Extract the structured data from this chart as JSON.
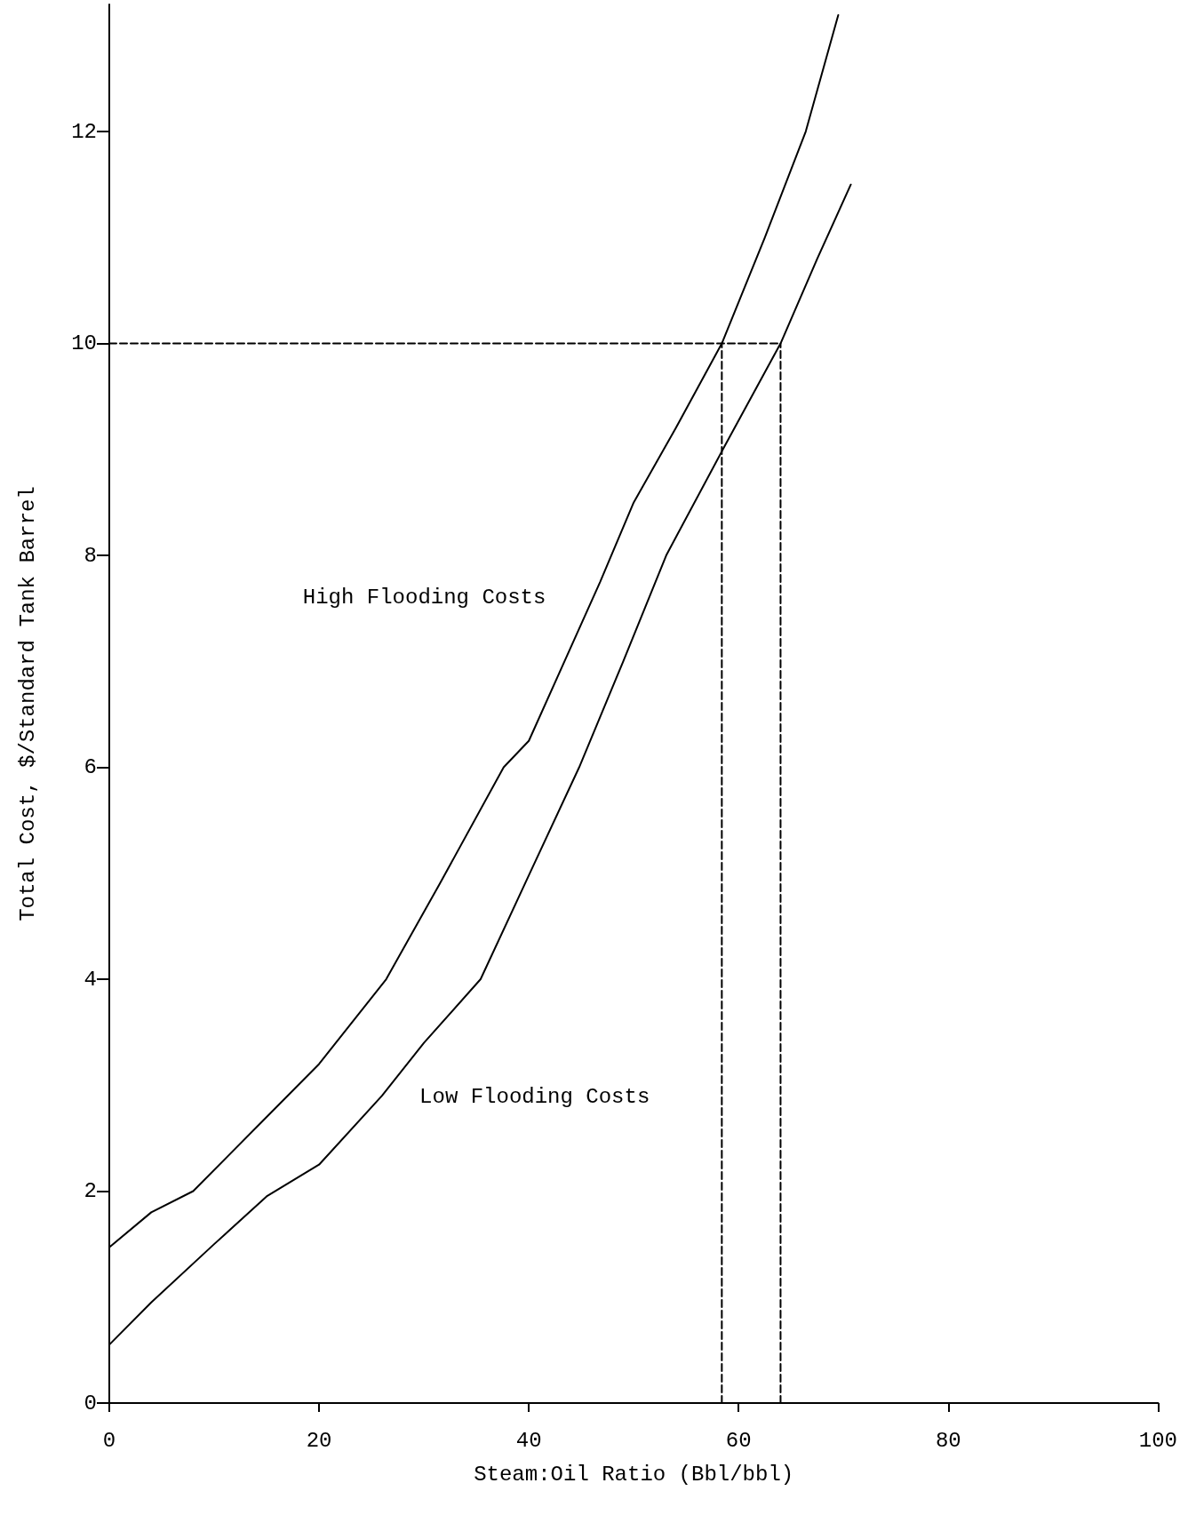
{
  "chart_data": {
    "type": "line",
    "xlabel": "Steam:Oil Ratio (Bbl/bbl)",
    "ylabel": "Total Cost, $/Standard Tank Barrel",
    "xlim": [
      0,
      100
    ],
    "xticks": [
      0,
      20,
      40,
      60,
      80,
      100
    ],
    "ylim": [
      0,
      13.2
    ],
    "yticks": [
      0,
      2,
      4,
      6,
      8,
      10,
      12
    ],
    "grid": false,
    "marker": "none",
    "line_style": "solid",
    "series": [
      {
        "color": "#000000",
        "x": [
          0,
          4,
          8,
          14,
          20,
          26.4,
          31.5,
          37.6,
          40,
          46.8,
          50,
          54,
          58.4,
          62.5,
          66.4,
          69.5
        ],
        "values": [
          1.47,
          1.8,
          2.0,
          2.6,
          3.2,
          4,
          4.9,
          6,
          6.25,
          7.75,
          8.5,
          9.2,
          10,
          11,
          12,
          13.1
        ]
      },
      {
        "color": "#000000",
        "x": [
          0,
          4,
          10,
          15,
          20,
          26,
          30,
          35.4,
          40,
          44.8,
          49,
          53.1,
          58.5,
          64,
          67.5,
          70.7
        ],
        "values": [
          0.55,
          0.95,
          1.5,
          1.95,
          2.25,
          2.9,
          3.4,
          4,
          4.98,
          6,
          7,
          8,
          9,
          10,
          10.8,
          11.5
        ]
      },
      {
        "color": "#000000",
        "line_style": "dashed",
        "x": [
          0,
          64
        ],
        "values": [
          10,
          10
        ]
      },
      {
        "color": "#000000",
        "line_style": "dashed",
        "x": [
          58.4,
          58.4
        ],
        "values": [
          0,
          10
        ]
      },
      {
        "color": "#000000",
        "line_style": "dashed",
        "x": [
          64,
          64
        ],
        "values": [
          0,
          10
        ]
      }
    ],
    "annotations": [
      "High Flooding Costs",
      "Low Flooding Costs"
    ]
  }
}
